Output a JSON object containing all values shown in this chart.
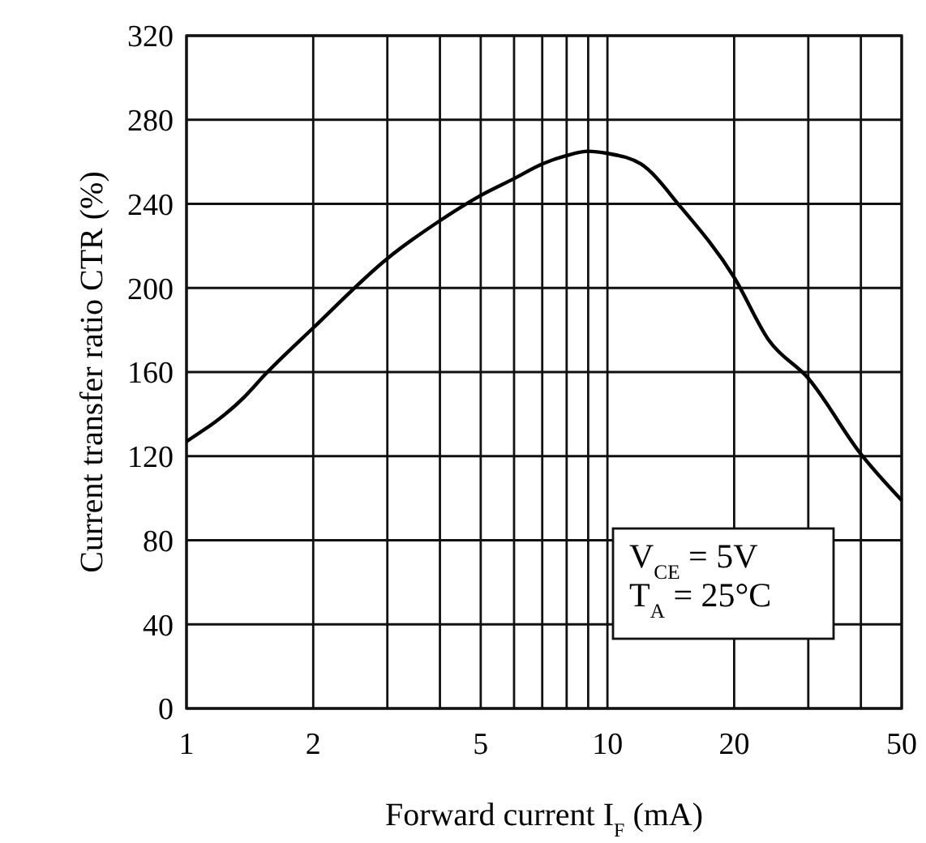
{
  "chart_data": {
    "type": "line",
    "xlabel": "Forward current I$_{F}$ (mA)",
    "ylabel": "Current transfer ratio CTR (%)",
    "x": [
      1,
      1.37,
      1.54,
      2,
      3,
      4,
      5,
      6,
      7,
      8,
      9,
      10,
      12,
      15,
      20,
      24.2,
      30,
      40,
      50
    ],
    "series": [
      {
        "color": "#000000",
        "values": [
          127,
          148,
          159,
          181,
          214,
          232,
          244,
          252,
          259,
          263,
          265,
          264,
          259,
          238,
          205,
          175,
          157,
          121,
          99
        ]
      }
    ],
    "log": "x",
    "xlim": [
      1,
      50
    ],
    "xticks": [
      1,
      2,
      {
        "value": 3,
        "label": null
      },
      {
        "value": 4,
        "label": null
      },
      5,
      {
        "value": 6,
        "label": null
      },
      {
        "value": 7,
        "label": null
      },
      {
        "value": 8,
        "label": null
      },
      {
        "value": 9,
        "label": null
      },
      10,
      20,
      {
        "value": 30,
        "label": null
      },
      {
        "value": 40,
        "label": null
      },
      50
    ],
    "ylim": [
      0,
      320
    ],
    "yticks": [
      0,
      40,
      80,
      120,
      160,
      200,
      240,
      280,
      320
    ],
    "grid": true,
    "annotations": [
      "V$_{CE}$ = 5V",
      "T$_{A}$ = 25°C"
    ]
  }
}
